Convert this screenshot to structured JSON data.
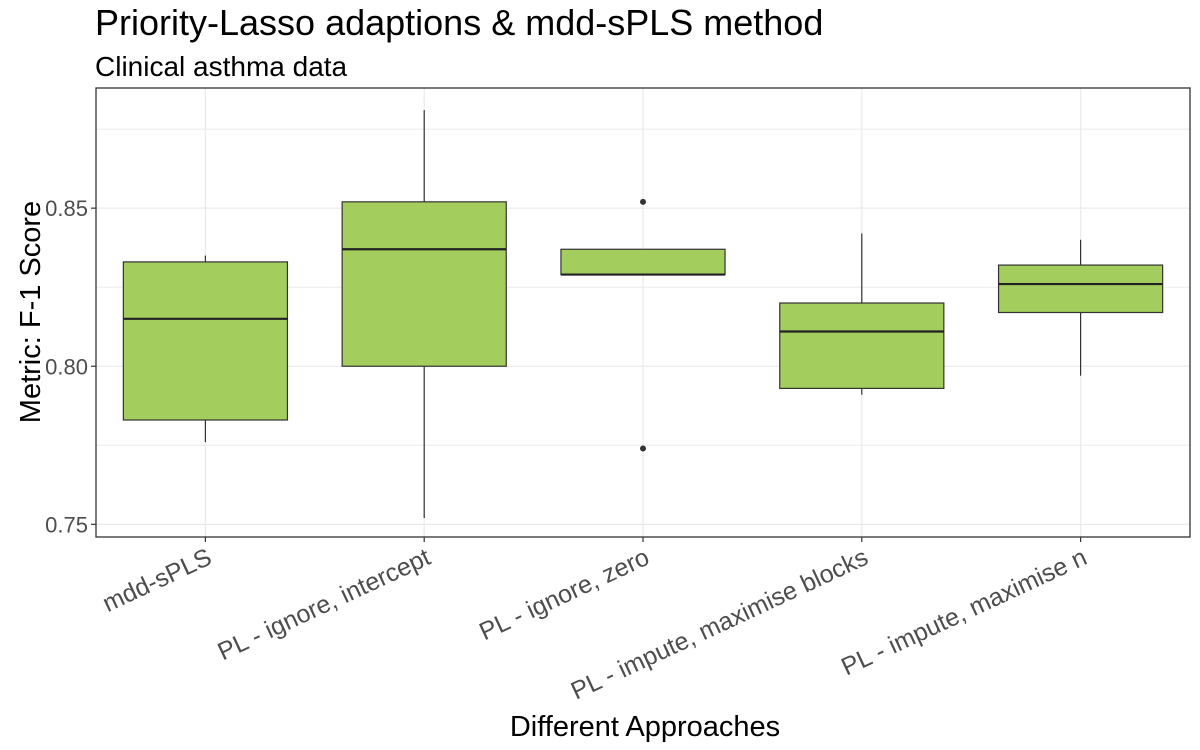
{
  "chart_data": {
    "type": "boxplot",
    "title": "Priority-Lasso adaptions & mdd-sPLS method",
    "subtitle": "Clinical asthma data",
    "xlabel": "Different Approaches",
    "ylabel": "Metric: F-1 Score",
    "ylim": [
      0.746,
      0.888
    ],
    "yticks": [
      0.75,
      0.8,
      0.85
    ],
    "ytick_labels": [
      "0.75",
      "0.80",
      "0.85"
    ],
    "grid": true,
    "fill_color": "#a3cd5c",
    "categories": [
      "mdd-sPLS",
      "PL - ignore, intercept",
      "PL - ignore, zero",
      "PL - impute, maximise blocks",
      "PL - impute, maximise n"
    ],
    "boxes": [
      {
        "whisker_low": 0.776,
        "q1": 0.783,
        "median": 0.815,
        "q3": 0.833,
        "whisker_high": 0.835,
        "outliers": []
      },
      {
        "whisker_low": 0.752,
        "q1": 0.8,
        "median": 0.837,
        "q3": 0.852,
        "whisker_high": 0.881,
        "outliers": []
      },
      {
        "whisker_low": 0.829,
        "q1": 0.829,
        "median": 0.829,
        "q3": 0.837,
        "whisker_high": 0.837,
        "outliers": [
          0.852,
          0.774
        ]
      },
      {
        "whisker_low": 0.791,
        "q1": 0.793,
        "median": 0.811,
        "q3": 0.82,
        "whisker_high": 0.842,
        "outliers": []
      },
      {
        "whisker_low": 0.797,
        "q1": 0.817,
        "median": 0.826,
        "q3": 0.832,
        "whisker_high": 0.84,
        "outliers": []
      }
    ]
  }
}
